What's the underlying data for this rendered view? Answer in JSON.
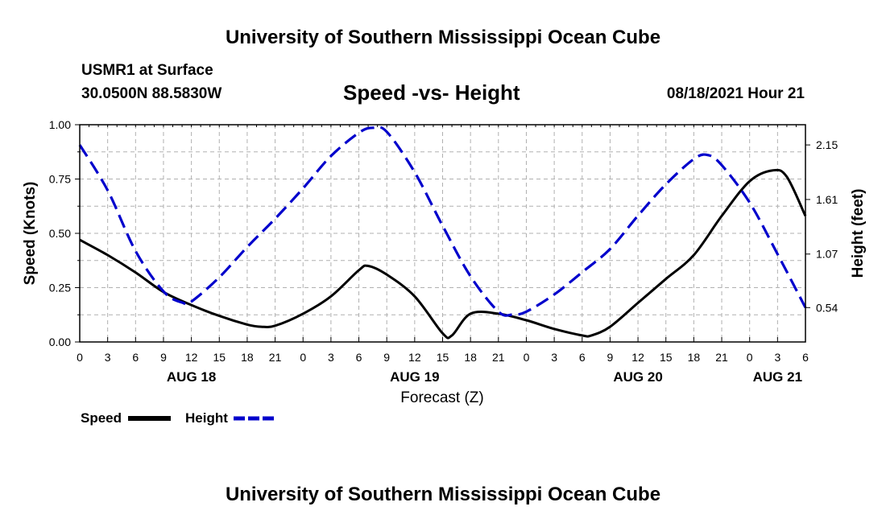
{
  "page": {
    "title_top": "University of Southern Mississippi Ocean Cube",
    "title_bottom": "University of Southern Mississippi Ocean Cube",
    "station": "USMR1 at Surface",
    "coords": "30.0500N  88.5830W",
    "datetime": "08/18/2021 Hour 21"
  },
  "colors": {
    "speed": "#000000",
    "height": "#0000cc",
    "grid": "#b0b0b0"
  },
  "chart_data": {
    "type": "line",
    "title": "Speed -vs- Height",
    "xlabel": "Forecast (Z)",
    "ylabel": "Speed (Knots)",
    "y2label": "Height (feet)",
    "x_hours_range": [
      0,
      78
    ],
    "x_ticks": [
      {
        "h": 0,
        "label": "0"
      },
      {
        "h": 3,
        "label": "3"
      },
      {
        "h": 6,
        "label": "6"
      },
      {
        "h": 9,
        "label": "9"
      },
      {
        "h": 12,
        "label": "12"
      },
      {
        "h": 15,
        "label": "15"
      },
      {
        "h": 18,
        "label": "18"
      },
      {
        "h": 21,
        "label": "21"
      },
      {
        "h": 24,
        "label": "0"
      },
      {
        "h": 27,
        "label": "3"
      },
      {
        "h": 30,
        "label": "6"
      },
      {
        "h": 33,
        "label": "9"
      },
      {
        "h": 36,
        "label": "12"
      },
      {
        "h": 39,
        "label": "15"
      },
      {
        "h": 42,
        "label": "18"
      },
      {
        "h": 45,
        "label": "21"
      },
      {
        "h": 48,
        "label": "0"
      },
      {
        "h": 51,
        "label": "3"
      },
      {
        "h": 54,
        "label": "6"
      },
      {
        "h": 57,
        "label": "9"
      },
      {
        "h": 60,
        "label": "12"
      },
      {
        "h": 63,
        "label": "15"
      },
      {
        "h": 66,
        "label": "18"
      },
      {
        "h": 69,
        "label": "21"
      },
      {
        "h": 72,
        "label": "0"
      },
      {
        "h": 75,
        "label": "3"
      },
      {
        "h": 78,
        "label": "6"
      }
    ],
    "date_labels": [
      {
        "h": 12,
        "label": "AUG 18"
      },
      {
        "h": 36,
        "label": "AUG 19"
      },
      {
        "h": 60,
        "label": "AUG 20"
      },
      {
        "h": 75,
        "label": "AUG 21"
      }
    ],
    "ylim": [
      0,
      1.0
    ],
    "y_ticks": [
      {
        "v": 0,
        "label": "0.00"
      },
      {
        "v": 0.25,
        "label": "0.25"
      },
      {
        "v": 0.5,
        "label": "0.50"
      },
      {
        "v": 0.75,
        "label": "0.75"
      },
      {
        "v": 1.0,
        "label": "1.00"
      }
    ],
    "y2lim": [
      0.2,
      2.35
    ],
    "y2_ticks": [
      {
        "v": 0.54,
        "label": "0.54"
      },
      {
        "v": 1.07,
        "label": "1.07"
      },
      {
        "v": 1.61,
        "label": "1.61"
      },
      {
        "v": 2.15,
        "label": "2.15"
      }
    ],
    "legend": [
      {
        "name": "Speed",
        "style": "solid"
      },
      {
        "name": "Height",
        "style": "dashed"
      }
    ],
    "series": [
      {
        "name": "Speed",
        "axis": "left",
        "x": [
          0,
          3,
          6,
          9,
          12,
          15,
          18,
          19.5,
          21,
          24,
          27,
          30,
          31,
          33,
          36,
          39,
          40,
          42,
          45,
          48,
          51,
          54,
          55,
          57,
          60,
          63,
          66,
          69,
          72,
          74.5,
          76,
          78
        ],
        "values": [
          0.47,
          0.4,
          0.32,
          0.23,
          0.17,
          0.12,
          0.08,
          0.07,
          0.075,
          0.13,
          0.21,
          0.33,
          0.35,
          0.31,
          0.21,
          0.04,
          0.03,
          0.13,
          0.13,
          0.1,
          0.06,
          0.03,
          0.03,
          0.07,
          0.18,
          0.29,
          0.4,
          0.58,
          0.74,
          0.79,
          0.76,
          0.58
        ]
      },
      {
        "name": "Height",
        "axis": "right",
        "x": [
          0,
          3,
          6,
          9,
          11,
          12,
          15,
          18,
          21,
          24,
          27,
          30,
          31.5,
          33,
          36,
          39,
          42,
          45,
          46.5,
          48,
          51,
          54,
          57,
          60,
          63,
          66,
          67.5,
          69,
          72,
          75,
          78
        ],
        "values": [
          2.15,
          1.7,
          1.1,
          0.7,
          0.59,
          0.6,
          0.84,
          1.14,
          1.42,
          1.72,
          2.04,
          2.27,
          2.32,
          2.28,
          1.88,
          1.35,
          0.85,
          0.5,
          0.47,
          0.5,
          0.67,
          0.89,
          1.12,
          1.45,
          1.76,
          2.01,
          2.05,
          1.95,
          1.58,
          1.07,
          0.54
        ]
      }
    ]
  }
}
